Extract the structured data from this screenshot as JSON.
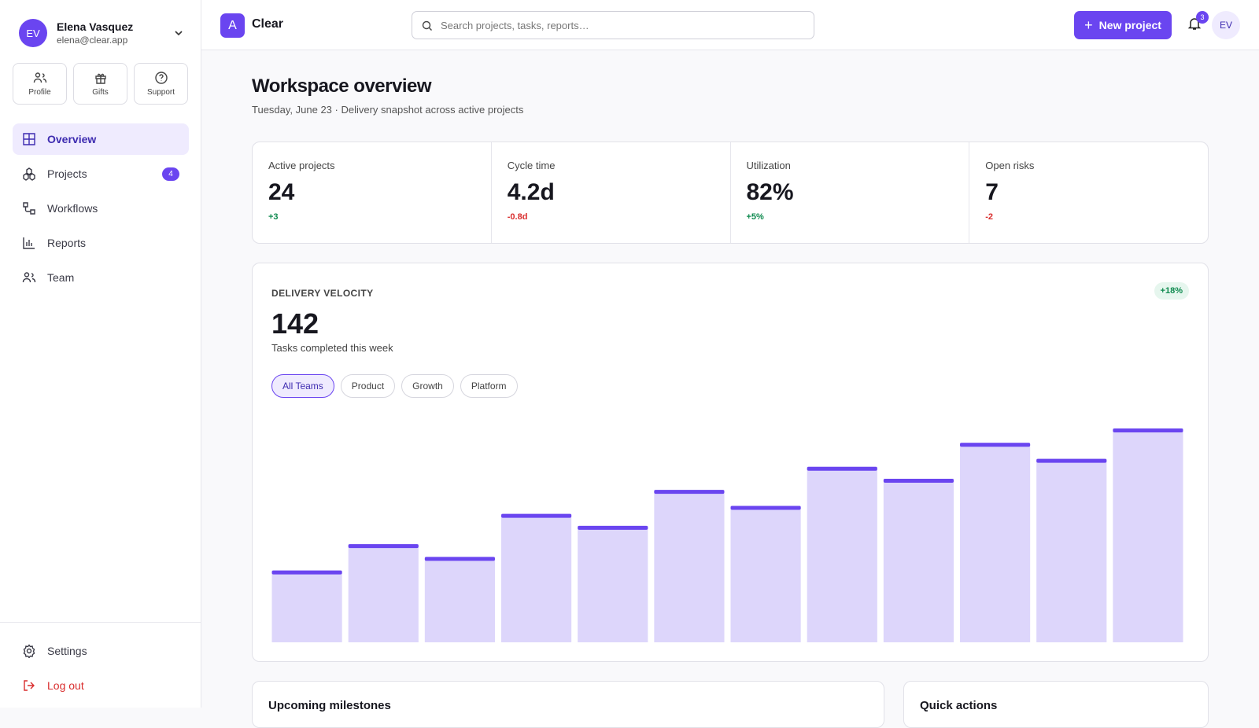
{
  "user": {
    "initials": "EV",
    "name": "Elena Vasquez",
    "email": "elena@clear.app"
  },
  "shortcuts": [
    "Profile",
    "Gifts",
    "Support"
  ],
  "nav": [
    {
      "label": "Overview",
      "active": true
    },
    {
      "label": "Projects",
      "badge": 4
    },
    {
      "label": "Workflows"
    },
    {
      "label": "Reports"
    },
    {
      "label": "Team"
    }
  ],
  "footer_nav": [
    {
      "label": "Settings",
      "color": "#3a3a46"
    },
    {
      "label": "Log out",
      "color": "#d92d2d"
    }
  ],
  "topbar": {
    "logo_letter": "A",
    "brand": "Clear",
    "search_placeholder": "Search projects, tasks, reports…",
    "new_button": "New project",
    "notifications": 3,
    "avatar": "EV"
  },
  "header": {
    "title": "Workspace overview",
    "subtitle": "Tuesday, June 23 · Delivery snapshot across active projects"
  },
  "kpis": [
    {
      "label": "Active projects",
      "value": 24,
      "delta": "+3",
      "delta_color": "#0f8a4f"
    },
    {
      "label": "Cycle time",
      "value": "4.2d",
      "delta": "-0.8d",
      "delta_color": "#d92d2d"
    },
    {
      "label": "Utilization",
      "value": "82%",
      "delta": "+5%",
      "delta_color": "#0f8a4f"
    },
    {
      "label": "Open risks",
      "value": 7,
      "delta": "-2",
      "delta_color": "#d92d2d"
    }
  ],
  "velocity": {
    "title": "DELIVERY VELOCITY",
    "value": 142,
    "caption": "Tasks completed this week",
    "change": "+18%",
    "filters": [
      "All Teams",
      "Product",
      "Growth",
      "Platform"
    ],
    "active_filter": 0,
    "bars": [
      90,
      123,
      107,
      161,
      146,
      191,
      171,
      220,
      205,
      250,
      230,
      268
    ],
    "bar_color": "#ddd6fb",
    "cap_color": "#6a45f0"
  },
  "panels": [
    "Upcoming milestones",
    "Quick actions"
  ]
}
